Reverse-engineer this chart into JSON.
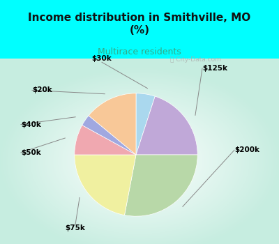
{
  "title": "Income distribution in Smithville, MO\n(%)",
  "subtitle": "Multirace residents",
  "title_color": "#111111",
  "subtitle_color": "#33aa88",
  "background_cyan": "#00ffff",
  "labels": [
    "$30k",
    "$125k",
    "$200k",
    "$75k",
    "$50k",
    "$40k",
    "$20k"
  ],
  "sizes": [
    5,
    20,
    28,
    22,
    8,
    3,
    14
  ],
  "colors": [
    "#aad8ee",
    "#c0a8d8",
    "#b8d8a8",
    "#f0f0a0",
    "#f0a8b0",
    "#a0a8e0",
    "#f8c898"
  ],
  "startangle": 90,
  "watermark": "ⓘ City-Data.com"
}
